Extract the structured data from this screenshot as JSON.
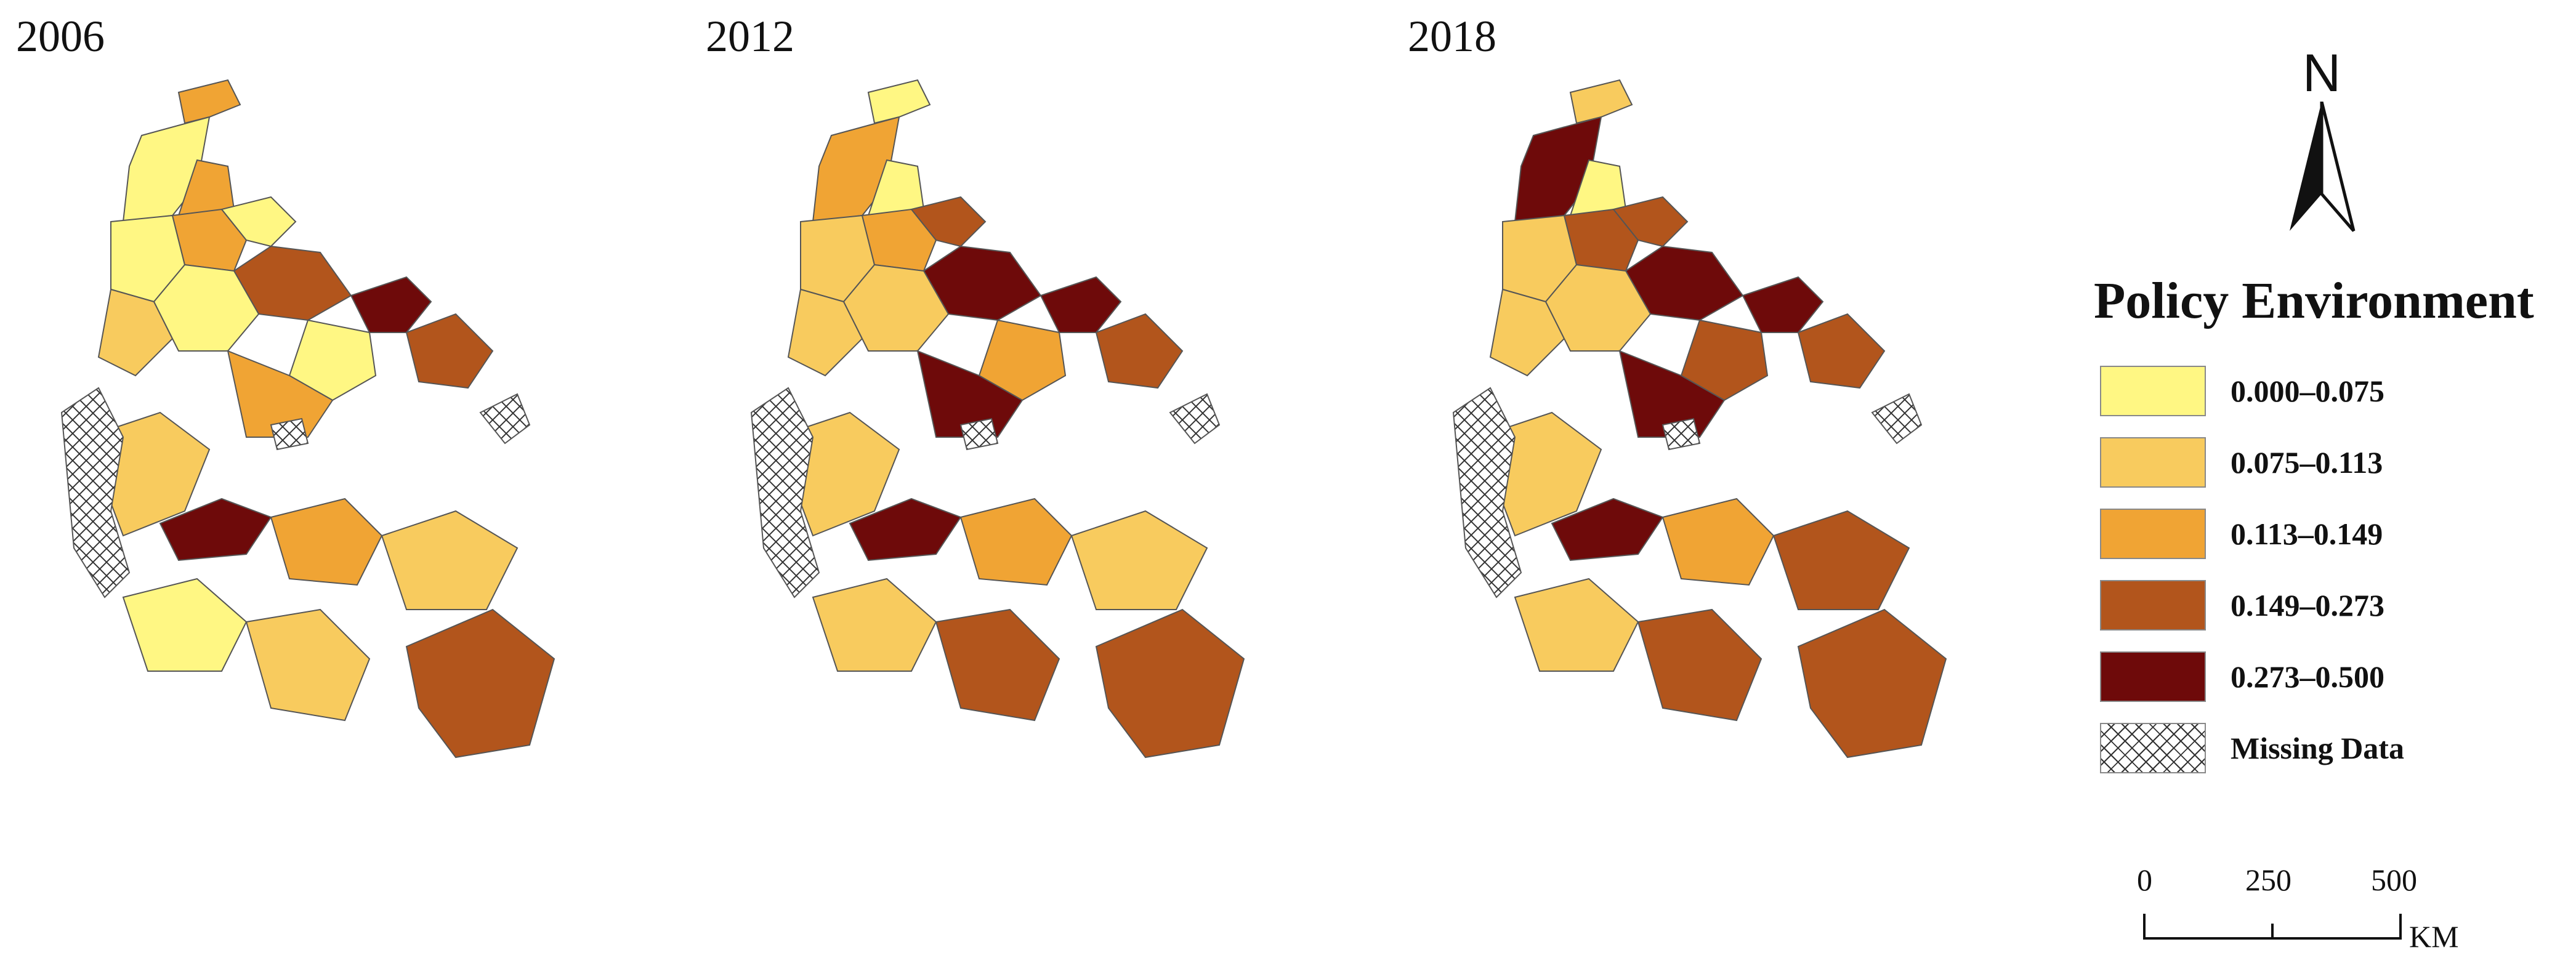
{
  "maps": [
    {
      "year": "2006",
      "classes": [
        3,
        1,
        3,
        1,
        3,
        1,
        4,
        5,
        2,
        1,
        1,
        4,
        3,
        2,
        5,
        3,
        2,
        1,
        2,
        4
      ]
    },
    {
      "year": "2012",
      "classes": [
        1,
        3,
        1,
        2,
        3,
        4,
        5,
        5,
        2,
        2,
        3,
        4,
        5,
        2,
        5,
        3,
        2,
        2,
        4,
        4
      ]
    },
    {
      "year": "2018",
      "classes": [
        2,
        5,
        1,
        2,
        4,
        4,
        5,
        5,
        2,
        2,
        4,
        4,
        5,
        2,
        5,
        3,
        4,
        2,
        4,
        4
      ]
    }
  ],
  "legend": {
    "title": "Policy Environment",
    "items": [
      {
        "label": "0.000–0.075",
        "color": "#FFF783"
      },
      {
        "label": "0.075–0.113",
        "color": "#F8CB5E"
      },
      {
        "label": "0.113–0.149",
        "color": "#F0A434"
      },
      {
        "label": "0.149–0.273",
        "color": "#B2551C"
      },
      {
        "label": "0.273–0.500",
        "color": "#6E0A0A"
      },
      {
        "label": "Missing Data",
        "color": "hatch"
      }
    ]
  },
  "north_arrow": {
    "letter": "N"
  },
  "scale_bar": {
    "ticks": [
      "0",
      "250",
      "500"
    ],
    "unit": "KM"
  }
}
